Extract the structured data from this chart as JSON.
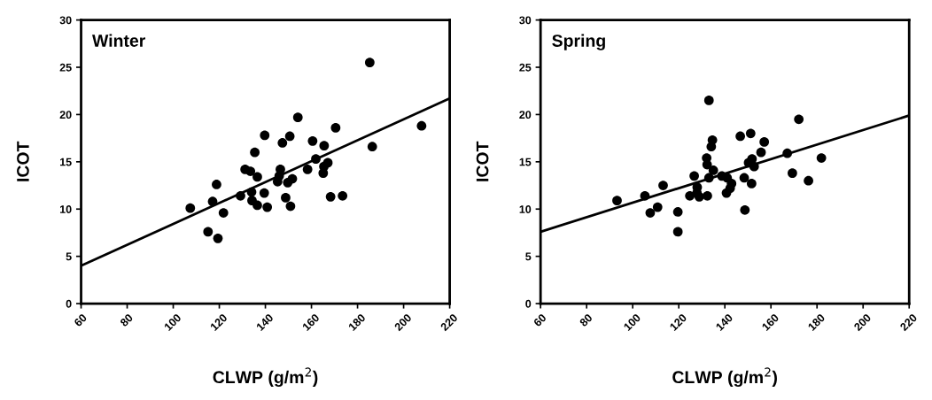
{
  "chart_data": [
    {
      "type": "scatter",
      "title": "Winter",
      "xlabel": "CLWP (g/m$^{2}$)",
      "ylabel": "ICOT",
      "xlim": [
        60,
        220
      ],
      "ylim": [
        0,
        30
      ],
      "xticks": [
        60,
        80,
        100,
        120,
        140,
        160,
        180,
        200,
        220
      ],
      "yticks": [
        0,
        5,
        10,
        15,
        20,
        25,
        30
      ],
      "grid": false,
      "legend": false,
      "series": [
        {
          "marker": "circle",
          "color": "#000000",
          "x": [
            185.3,
            207.8,
            154.1,
            170.5,
            139.7,
            150.6,
            147.4,
            160.5,
            165.5,
            186.4,
            135.4,
            161.9,
            167.1,
            165.4,
            165.1,
            158.3,
            146.5,
            131.2,
            133.5,
            136.5,
            146.0,
            145.3,
            149.7,
            151.7,
            118.8,
            129.2,
            134.0,
            139.5,
            148.8,
            168.3,
            173.5,
            117.1,
            107.4,
            134.2,
            136.5,
            140.8,
            150.9,
            121.8,
            115.1,
            119.4
          ],
          "values": [
            25.5,
            18.8,
            19.7,
            18.6,
            17.8,
            17.7,
            17.0,
            17.2,
            16.7,
            16.6,
            16.0,
            15.3,
            14.9,
            14.5,
            13.8,
            14.2,
            14.2,
            14.2,
            14.0,
            13.4,
            13.5,
            12.9,
            12.8,
            13.2,
            12.6,
            11.4,
            11.8,
            11.7,
            11.2,
            11.3,
            11.4,
            10.8,
            10.1,
            10.9,
            10.4,
            10.2,
            10.3,
            9.6,
            7.6,
            6.9
          ]
        },
        {
          "type": "line",
          "color": "#000000",
          "x": [
            60,
            220
          ],
          "values": [
            4.0,
            21.7
          ]
        }
      ]
    },
    {
      "type": "scatter",
      "title": "Spring",
      "xlabel": "CLWP (g/m$^{2}$)",
      "ylabel": "ICOT",
      "xlim": [
        60,
        220
      ],
      "ylim": [
        0,
        30
      ],
      "xticks": [
        60,
        80,
        100,
        120,
        140,
        160,
        180,
        200,
        220
      ],
      "yticks": [
        0,
        5,
        10,
        15,
        20,
        25,
        30
      ],
      "grid": false,
      "legend": false,
      "series": [
        {
          "marker": "circle",
          "color": "#000000",
          "x": [
            93.2,
            105.3,
            107.6,
            110.8,
            113.2,
            119.6,
            119.6,
            126.7,
            124.8,
            128.0,
            127.9,
            128.9,
            132.4,
            133.1,
            134.6,
            134.1,
            132.1,
            132.3,
            135.0,
            133.1,
            138.7,
            141.0,
            142.9,
            142.3,
            140.7,
            146.7,
            151.2,
            148.4,
            148.7,
            151.8,
            150.3,
            152.7,
            151.6,
            157.1,
            155.7,
            167.1,
            172.1,
            169.3,
            176.3,
            181.9
          ],
          "values": [
            10.9,
            11.4,
            9.6,
            10.2,
            12.5,
            9.7,
            7.6,
            13.5,
            11.4,
            12.3,
            11.7,
            11.3,
            11.4,
            21.5,
            17.3,
            16.6,
            15.4,
            14.7,
            14.1,
            13.3,
            13.5,
            13.3,
            12.7,
            12.2,
            11.7,
            17.7,
            18.0,
            13.3,
            9.9,
            15.3,
            14.9,
            14.5,
            12.7,
            17.1,
            16.0,
            15.9,
            19.5,
            13.8,
            13.0,
            15.4
          ]
        },
        {
          "type": "line",
          "color": "#000000",
          "x": [
            60,
            220
          ],
          "values": [
            7.6,
            19.9
          ]
        }
      ]
    }
  ]
}
